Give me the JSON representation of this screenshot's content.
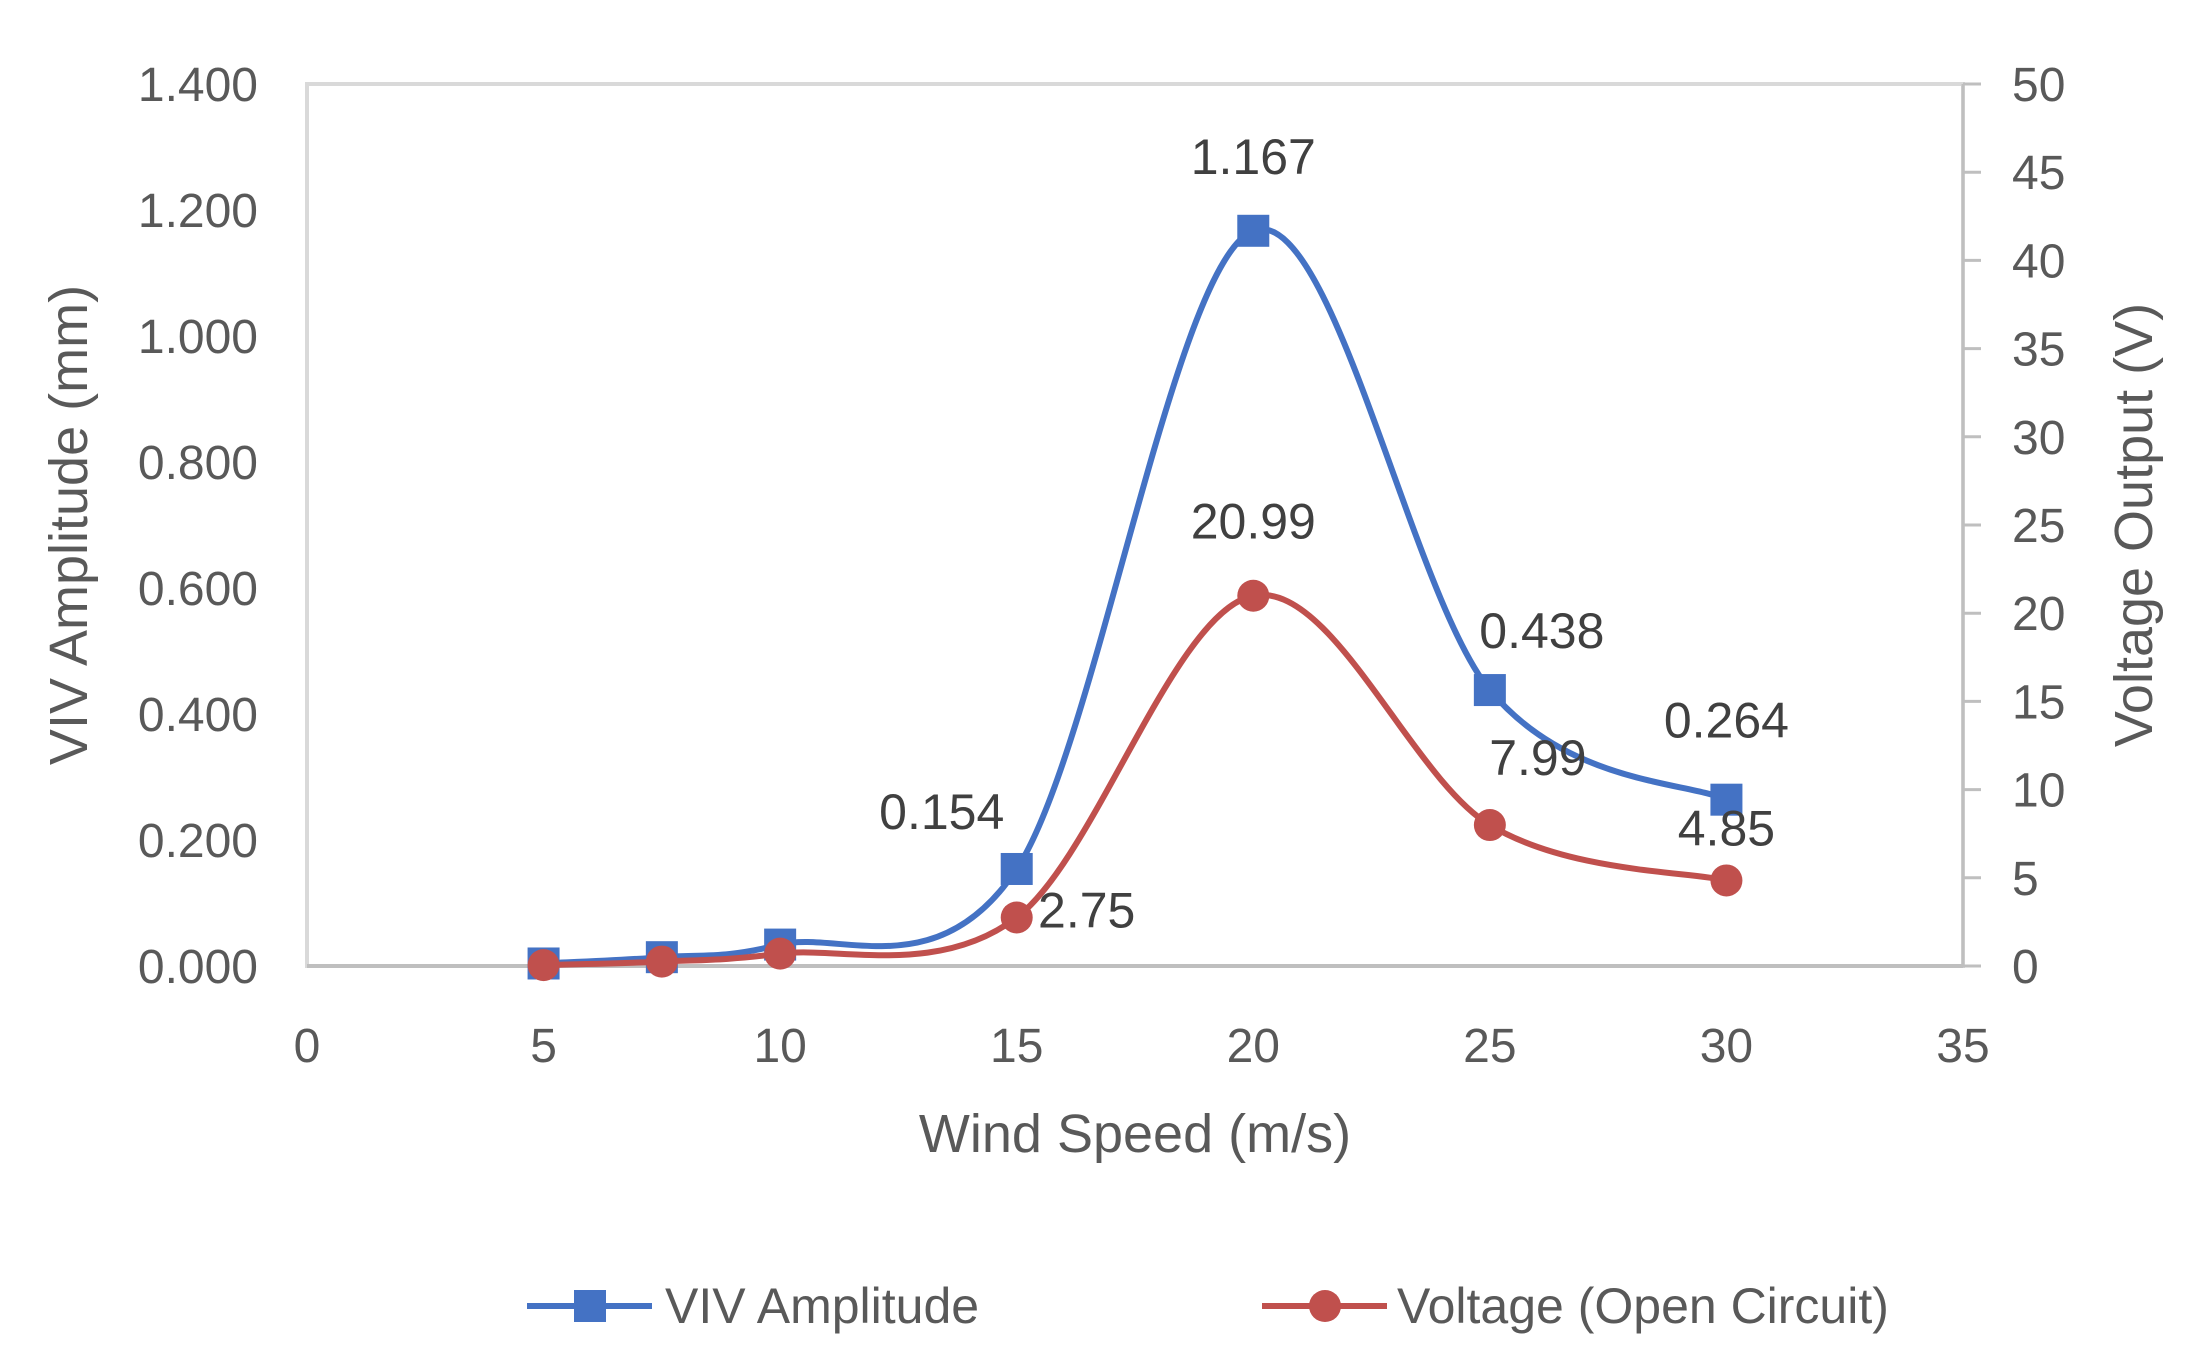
{
  "chart_data": {
    "type": "line",
    "smooth": true,
    "title": "",
    "xlabel": "Wind Speed (m/s)",
    "ylabel": "VIV Amplitude (mm)",
    "y2label": "Voltage Output (V)",
    "xlim": [
      0,
      35
    ],
    "ylim": [
      0,
      1.4
    ],
    "y2lim": [
      0,
      50
    ],
    "x_ticks": [
      "0",
      "5",
      "10",
      "15",
      "20",
      "25",
      "30",
      "35"
    ],
    "y_ticks": [
      "0.000",
      "0.200",
      "0.400",
      "0.600",
      "0.800",
      "1.000",
      "1.200",
      "1.400"
    ],
    "y2_ticks": [
      "0",
      "5",
      "10",
      "15",
      "20",
      "25",
      "30",
      "35",
      "40",
      "45",
      "50"
    ],
    "grid": false,
    "legend_position": "bottom",
    "series": [
      {
        "name": "VIV Amplitude",
        "axis": "left",
        "color": "#4472C4",
        "marker": "square",
        "x": [
          5,
          7.5,
          10,
          15,
          20,
          25,
          30
        ],
        "values": [
          0.004,
          0.014,
          0.034,
          0.154,
          1.167,
          0.438,
          0.264
        ],
        "labels": [
          "",
          "",
          "",
          "0.154",
          "1.167",
          "0.438",
          "0.264"
        ]
      },
      {
        "name": "Voltage (Open Circuit)",
        "axis": "right",
        "color": "#C0504D",
        "marker": "circle",
        "x": [
          5,
          7.5,
          10,
          15,
          20,
          25,
          30
        ],
        "values": [
          0.05,
          0.25,
          0.7,
          2.75,
          20.99,
          7.99,
          4.85
        ],
        "labels": [
          "",
          "",
          "",
          "2.75",
          "20.99",
          "7.99",
          "4.85"
        ]
      }
    ]
  }
}
